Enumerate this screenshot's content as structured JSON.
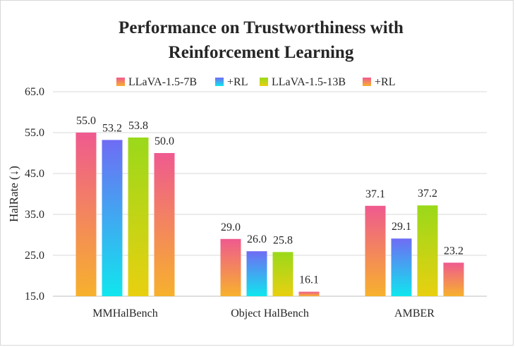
{
  "chart_data": {
    "type": "bar",
    "title_lines": [
      "Performance on Trustworthiness with",
      "Reinforcement Learning"
    ],
    "ylabel": "HalRate (↓)",
    "xlabel": "",
    "ylim": [
      15.0,
      65.0
    ],
    "yticks": [
      "15.0",
      "25.0",
      "35.0",
      "45.0",
      "55.0",
      "65.0"
    ],
    "ytick_values": [
      15,
      25,
      35,
      45,
      55,
      65
    ],
    "grid": true,
    "legend_position": "top",
    "categories": [
      "MMHalBench",
      "Object HalBench",
      "AMBER"
    ],
    "series": [
      {
        "name": "LLaVA-1.5-7B",
        "values": [
          55.0,
          29.0,
          37.1
        ],
        "labels": [
          "55.0",
          "29.0",
          "37.1"
        ],
        "gradient": [
          "#ef5a8f",
          "#f7b12d"
        ]
      },
      {
        "name": "+RL",
        "values": [
          53.2,
          26.0,
          29.1
        ],
        "labels": [
          "53.2",
          "26.0",
          "29.1"
        ],
        "gradient": [
          "#6f6cf4",
          "#10e6ee"
        ]
      },
      {
        "name": "LLaVA-1.5-13B",
        "values": [
          53.8,
          25.8,
          37.2
        ],
        "labels": [
          "53.8",
          "25.8",
          "37.2"
        ],
        "gradient": [
          "#9ad91a",
          "#e8d010"
        ]
      },
      {
        "name": "+RL",
        "values": [
          50.0,
          16.1,
          23.2
        ],
        "labels": [
          "50.0",
          "16.1",
          "23.2"
        ],
        "gradient": [
          "#ef5a8f",
          "#f7b12d"
        ]
      }
    ]
  }
}
